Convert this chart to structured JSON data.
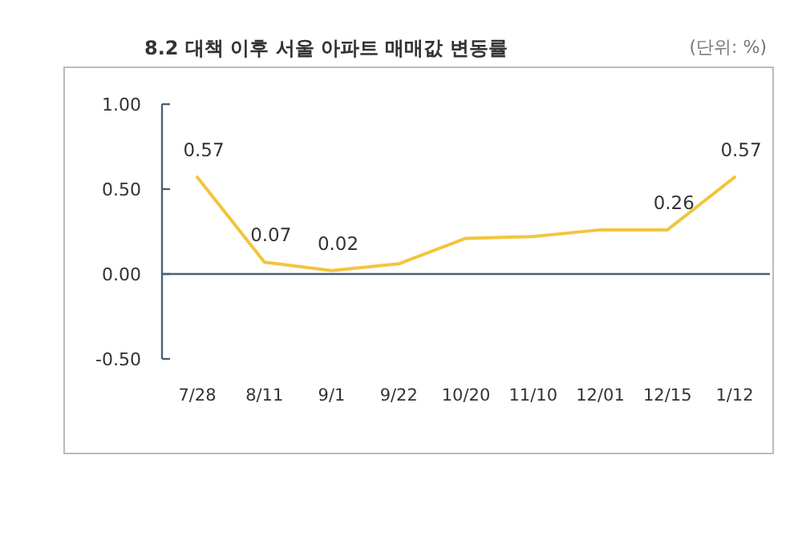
{
  "chart_data": {
    "type": "line",
    "title": "8.2 대책 이후 서울 아파트 매매값 변동률",
    "annotations": [
      "(단위: %)"
    ],
    "categories": [
      "7/28",
      "8/11",
      "9/1",
      "9/22",
      "10/20",
      "11/10",
      "12/01",
      "12/15",
      "1/12"
    ],
    "series": [
      {
        "color": "#f2c53d",
        "values": [
          0.57,
          0.07,
          0.02,
          0.06,
          0.21,
          0.22,
          0.26,
          0.26,
          0.57
        ],
        "value_labels": [
          "0.57",
          "0.07",
          "0.02",
          null,
          null,
          null,
          null,
          "0.26",
          "0.57"
        ]
      }
    ],
    "ref_lines": [
      {
        "axis": "y",
        "value": 0,
        "color": "#4a6078"
      }
    ],
    "ylim": [
      -0.5,
      1.0
    ],
    "yticks": [
      {
        "value": -0.5,
        "label": "-0.50"
      },
      {
        "value": 0,
        "label": "0.00"
      },
      {
        "value": 0.5,
        "label": "0.50"
      },
      {
        "value": 1,
        "label": "1.00"
      }
    ]
  }
}
